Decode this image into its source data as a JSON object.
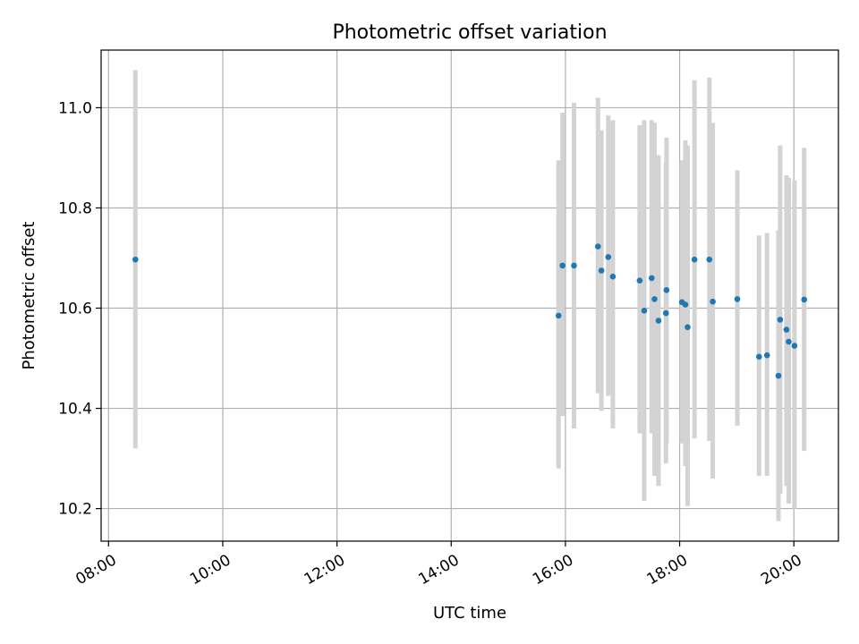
{
  "chart_data": {
    "type": "scatter",
    "title": "Photometric offset variation",
    "xlabel": "UTC time",
    "ylabel": "Photometric offset",
    "x_unit": "hour of day (UTC)",
    "xlim": [
      7.87,
      20.78
    ],
    "ylim": [
      10.135,
      11.115
    ],
    "xticks": [
      8,
      10,
      12,
      14,
      16,
      18,
      20
    ],
    "xtick_labels": [
      "08:00",
      "10:00",
      "12:00",
      "14:00",
      "16:00",
      "18:00",
      "20:00"
    ],
    "yticks": [
      10.2,
      10.4,
      10.6,
      10.8,
      11.0
    ],
    "ytick_labels": [
      "10.2",
      "10.4",
      "10.6",
      "10.8",
      "11.0"
    ],
    "grid": true,
    "marker_color": "#1f77b4",
    "errorbar_color": "#d3d3d3",
    "points": [
      {
        "x": 8.47,
        "y": 10.697,
        "lo": 10.32,
        "hi": 11.075
      },
      {
        "x": 15.88,
        "y": 10.585,
        "lo": 10.28,
        "hi": 10.895
      },
      {
        "x": 15.95,
        "y": 10.685,
        "lo": 10.385,
        "hi": 10.99
      },
      {
        "x": 16.15,
        "y": 10.685,
        "lo": 10.36,
        "hi": 11.01
      },
      {
        "x": 16.57,
        "y": 10.723,
        "lo": 10.43,
        "hi": 11.02
      },
      {
        "x": 16.63,
        "y": 10.675,
        "lo": 10.395,
        "hi": 10.955
      },
      {
        "x": 16.75,
        "y": 10.702,
        "lo": 10.425,
        "hi": 10.985
      },
      {
        "x": 16.83,
        "y": 10.663,
        "lo": 10.36,
        "hi": 10.975
      },
      {
        "x": 17.3,
        "y": 10.655,
        "lo": 10.35,
        "hi": 10.965
      },
      {
        "x": 17.38,
        "y": 10.595,
        "lo": 10.215,
        "hi": 10.975
      },
      {
        "x": 17.51,
        "y": 10.66,
        "lo": 10.35,
        "hi": 10.975
      },
      {
        "x": 17.56,
        "y": 10.618,
        "lo": 10.265,
        "hi": 10.97
      },
      {
        "x": 17.63,
        "y": 10.575,
        "lo": 10.245,
        "hi": 10.905
      },
      {
        "x": 17.76,
        "y": 10.59,
        "lo": 10.29,
        "hi": 10.89
      },
      {
        "x": 17.77,
        "y": 10.636,
        "lo": 10.33,
        "hi": 10.94
      },
      {
        "x": 18.04,
        "y": 10.612,
        "lo": 10.33,
        "hi": 10.895
      },
      {
        "x": 18.1,
        "y": 10.607,
        "lo": 10.285,
        "hi": 10.935
      },
      {
        "x": 18.14,
        "y": 10.562,
        "lo": 10.205,
        "hi": 10.925
      },
      {
        "x": 18.26,
        "y": 10.697,
        "lo": 10.34,
        "hi": 11.055
      },
      {
        "x": 18.52,
        "y": 10.697,
        "lo": 10.335,
        "hi": 11.06
      },
      {
        "x": 18.58,
        "y": 10.613,
        "lo": 10.26,
        "hi": 10.97
      },
      {
        "x": 19.01,
        "y": 10.618,
        "lo": 10.365,
        "hi": 10.875
      },
      {
        "x": 19.39,
        "y": 10.503,
        "lo": 10.265,
        "hi": 10.745
      },
      {
        "x": 19.53,
        "y": 10.506,
        "lo": 10.265,
        "hi": 10.75
      },
      {
        "x": 19.73,
        "y": 10.465,
        "lo": 10.175,
        "hi": 10.755
      },
      {
        "x": 19.76,
        "y": 10.577,
        "lo": 10.23,
        "hi": 10.925
      },
      {
        "x": 19.87,
        "y": 10.557,
        "lo": 10.245,
        "hi": 10.865
      },
      {
        "x": 19.91,
        "y": 10.533,
        "lo": 10.21,
        "hi": 10.86
      },
      {
        "x": 20.01,
        "y": 10.525,
        "lo": 10.2,
        "hi": 10.855
      },
      {
        "x": 20.18,
        "y": 10.617,
        "lo": 10.315,
        "hi": 10.92
      }
    ]
  }
}
